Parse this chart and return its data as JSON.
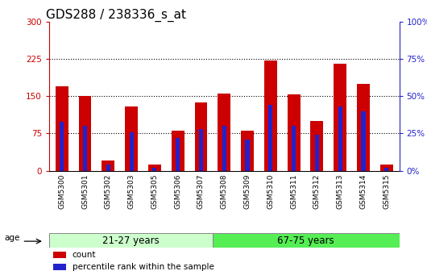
{
  "title": "GDS288 / 238336_s_at",
  "samples": [
    "GSM5300",
    "GSM5301",
    "GSM5302",
    "GSM5303",
    "GSM5305",
    "GSM5306",
    "GSM5307",
    "GSM5308",
    "GSM5309",
    "GSM5310",
    "GSM5311",
    "GSM5312",
    "GSM5313",
    "GSM5314",
    "GSM5315"
  ],
  "count_values": [
    170,
    150,
    20,
    130,
    12,
    80,
    138,
    155,
    80,
    222,
    153,
    100,
    215,
    175,
    12
  ],
  "percentile_values": [
    33,
    30,
    4,
    26,
    2,
    22,
    28,
    30,
    21,
    44,
    30,
    24,
    43,
    40,
    2
  ],
  "group1_label": "21-27 years",
  "group2_label": "67-75 years",
  "group1_count": 7,
  "group2_count": 8,
  "ylim_left": [
    0,
    300
  ],
  "ylim_right": [
    0,
    100
  ],
  "yticks_left": [
    0,
    75,
    150,
    225,
    300
  ],
  "ytick_labels_left": [
    "0",
    "75",
    "150",
    "225",
    "300"
  ],
  "yticks_right": [
    0,
    25,
    50,
    75,
    100
  ],
  "ytick_labels_right": [
    "0%",
    "25%",
    "50%",
    "75%",
    "100%"
  ],
  "bar_color_red": "#CC0000",
  "bar_color_blue": "#2222CC",
  "legend_count_label": "count",
  "legend_percentile_label": "percentile rank within the sample",
  "age_label": "age",
  "group1_bg": "#CCFFCC",
  "group2_bg": "#55EE55",
  "title_fontsize": 11,
  "tick_fontsize": 7.5,
  "bar_width": 0.55,
  "blue_bar_width": 0.18,
  "xtick_label_fontsize": 6.5
}
